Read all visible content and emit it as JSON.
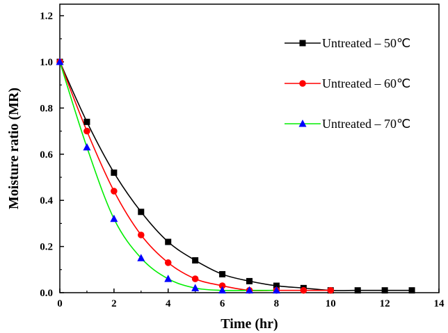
{
  "chart_data": {
    "type": "scatter",
    "xlabel": "Time (hr)",
    "ylabel": "Moisture ratio (MR)",
    "xlim": [
      0,
      14
    ],
    "ylim": [
      0,
      1.25
    ],
    "xticks": [
      "0",
      "2",
      "4",
      "6",
      "8",
      "10",
      "12",
      "14"
    ],
    "yticks": [
      "0.0",
      "0.2",
      "0.4",
      "0.6",
      "0.8",
      "1.0",
      "1.2"
    ],
    "grid": false,
    "legend_position": "top-right",
    "series": [
      {
        "name": "Untreated – 50℃",
        "color": "#000000",
        "marker": "square",
        "x": [
          0,
          1,
          2,
          3,
          4,
          5,
          6,
          7,
          8,
          9,
          10,
          11,
          12,
          13
        ],
        "y": [
          1.0,
          0.74,
          0.52,
          0.35,
          0.22,
          0.14,
          0.08,
          0.05,
          0.03,
          0.02,
          0.01,
          0.01,
          0.01,
          0.01
        ]
      },
      {
        "name": "Untreated – 60℃",
        "color": "#ff0000",
        "marker": "circle",
        "x": [
          0,
          1,
          2,
          3,
          4,
          5,
          6,
          7,
          8,
          9,
          10
        ],
        "y": [
          1.0,
          0.7,
          0.44,
          0.25,
          0.13,
          0.06,
          0.03,
          0.01,
          0.01,
          0.01,
          0.01
        ]
      },
      {
        "name": "Untreated – 70℃",
        "color": "#00ee00",
        "marker_color": "#0000ff",
        "marker": "triangle",
        "x": [
          0,
          1,
          2,
          3,
          4,
          5,
          6,
          7,
          8
        ],
        "y": [
          1.0,
          0.63,
          0.32,
          0.15,
          0.06,
          0.02,
          0.01,
          0.01,
          0.01
        ]
      }
    ]
  }
}
